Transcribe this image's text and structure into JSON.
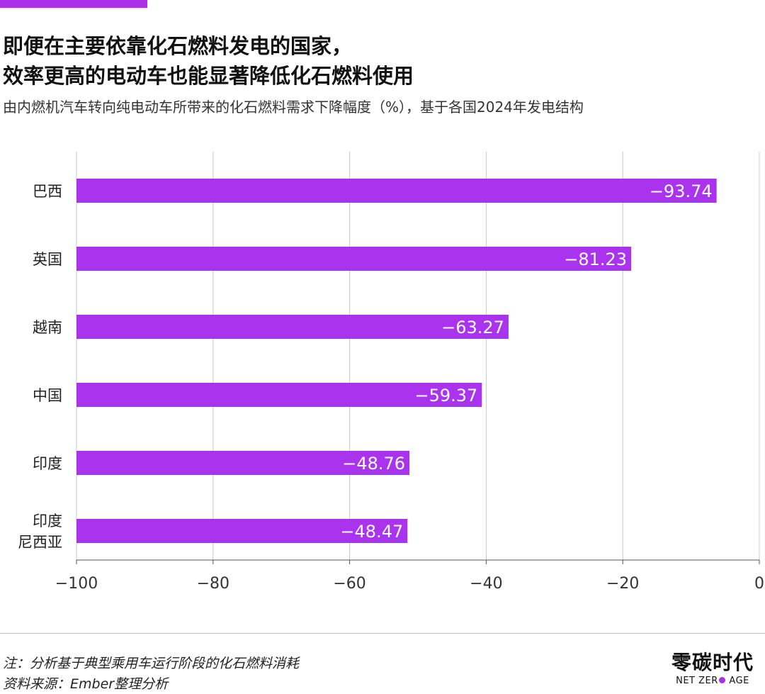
{
  "title_line1": "即便在主要依靠化石燃料发电的国家，",
  "title_line2": "效率更高的电动车也能显著降低化石燃料使用",
  "subtitle": "由内燃机汽车转向纯电动车所带来的化石燃料需求下降幅度（%），基于各国2024年发电结构",
  "colors": {
    "bar": "#aa33ee",
    "accent": "#a830e6",
    "divider": "#d9a8ee",
    "grid": "#c8c8c8",
    "axis": "#555555",
    "text": "#333333"
  },
  "chart_data": {
    "type": "bar",
    "orientation": "horizontal",
    "categories": [
      "巴西",
      "英国",
      "越南",
      "中国",
      "印度",
      "印度尼西亚"
    ],
    "category_lines": [
      [
        "巴西"
      ],
      [
        "英国"
      ],
      [
        "越南"
      ],
      [
        "中国"
      ],
      [
        "印度"
      ],
      [
        "印度",
        "尼西亚"
      ]
    ],
    "values": [
      -93.74,
      -81.23,
      -63.27,
      -59.37,
      -48.76,
      -48.47
    ],
    "value_labels": [
      "−93.74",
      "−81.23",
      "−63.27",
      "−59.37",
      "−48.76",
      "−48.47"
    ],
    "xlim": [
      -100,
      0
    ],
    "xticks": [
      -100,
      -80,
      -60,
      -40,
      -20,
      0
    ],
    "xtick_labels": [
      "−100",
      "−80",
      "−60",
      "−40",
      "−20",
      "0"
    ],
    "grid": "vertical",
    "xlabel": "",
    "ylabel": ""
  },
  "footer": {
    "note": "注：分析基于典型乘用车运行阶段的化石燃料消耗",
    "source": "资料来源：Ember整理分析"
  },
  "brand": {
    "name_cn": "零碳时代",
    "name_en_left": "NET ZER",
    "name_en_right": " AGE"
  }
}
